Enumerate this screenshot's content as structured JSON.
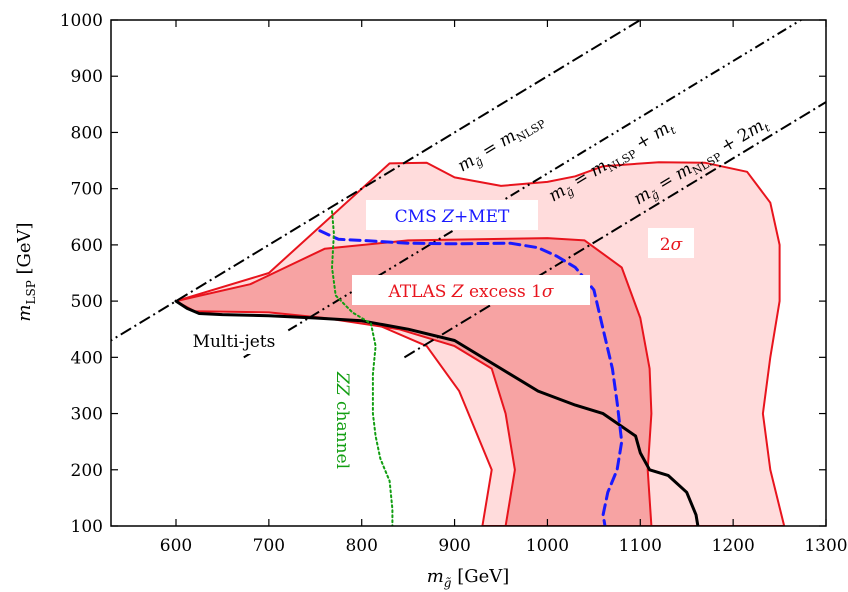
{
  "chart_data": {
    "type": "area",
    "xlabel": "m_g̃ [GeV]",
    "ylabel": "m_LSP [GeV]",
    "xlim": [
      530,
      1300
    ],
    "ylim": [
      100,
      1000
    ],
    "x_ticks": [
      "600",
      "700",
      "800",
      "900",
      "1000",
      "1100",
      "1200",
      "1300"
    ],
    "y_ticks": [
      "100",
      "200",
      "300",
      "400",
      "500",
      "600",
      "700",
      "800",
      "900",
      "1000"
    ],
    "x_tick_values": [
      600,
      700,
      800,
      900,
      1000,
      1100,
      1200,
      1300
    ],
    "y_tick_values": [
      100,
      200,
      300,
      400,
      500,
      600,
      700,
      800,
      900,
      1000
    ],
    "grid": false,
    "regions": [
      {
        "name": "2σ",
        "color": "#ffdcdc",
        "edge": "#e8141d",
        "points": [
          [
            600,
            500
          ],
          [
            700,
            550
          ],
          [
            830,
            745
          ],
          [
            870,
            746
          ],
          [
            900,
            720
          ],
          [
            950,
            705
          ],
          [
            1000,
            712
          ],
          [
            1030,
            722
          ],
          [
            1060,
            740
          ],
          [
            1120,
            747
          ],
          [
            1170,
            746
          ],
          [
            1215,
            730
          ],
          [
            1240,
            675
          ],
          [
            1250,
            600
          ],
          [
            1250,
            500
          ],
          [
            1240,
            400
          ],
          [
            1232,
            300
          ],
          [
            1240,
            200
          ],
          [
            1255,
            100
          ],
          [
            1253,
            100
          ],
          [
            1250,
            100
          ],
          [
            930,
            100
          ],
          [
            940,
            200
          ],
          [
            905,
            340
          ],
          [
            870,
            420
          ],
          [
            800,
            470
          ],
          [
            700,
            490
          ],
          [
            640,
            492
          ],
          [
            615,
            495
          ],
          [
            600,
            500
          ]
        ]
      },
      {
        "name": "1σ",
        "color": "#f7a3a3",
        "edge": "#e8141d",
        "points": [
          [
            600,
            500
          ],
          [
            680,
            530
          ],
          [
            760,
            593
          ],
          [
            850,
            608
          ],
          [
            1000,
            612
          ],
          [
            1040,
            608
          ],
          [
            1080,
            560
          ],
          [
            1100,
            470
          ],
          [
            1110,
            380
          ],
          [
            1112,
            300
          ],
          [
            1108,
            200
          ],
          [
            1112,
            100
          ],
          [
            955,
            100
          ],
          [
            965,
            200
          ],
          [
            955,
            300
          ],
          [
            940,
            380
          ],
          [
            900,
            420
          ],
          [
            840,
            450
          ],
          [
            760,
            470
          ],
          [
            700,
            480
          ],
          [
            620,
            482
          ],
          [
            600,
            500
          ]
        ]
      }
    ],
    "series": [
      {
        "name": "Multi-jets",
        "color": "#000000",
        "width": 3,
        "dash": "",
        "x": [
          600,
          612,
          625,
          650,
          700,
          750,
          800,
          850,
          900,
          950,
          990,
          1030,
          1060,
          1095,
          1100,
          1110,
          1130,
          1150,
          1160,
          1162
        ],
        "y": [
          500,
          487,
          478,
          476,
          474,
          470,
          465,
          450,
          430,
          380,
          340,
          315,
          300,
          260,
          230,
          200,
          190,
          160,
          120,
          100
        ]
      },
      {
        "name": "CMS Z+MET",
        "color": "#1a1aff",
        "width": 3,
        "dash": "10 6",
        "x": [
          755,
          775,
          800,
          850,
          900,
          960,
          990,
          1010,
          1030,
          1050,
          1060,
          1070,
          1075,
          1080,
          1075,
          1065,
          1060,
          1062
        ],
        "y": [
          625,
          610,
          608,
          603,
          602,
          603,
          595,
          580,
          560,
          520,
          450,
          380,
          320,
          250,
          200,
          160,
          120,
          100
        ]
      },
      {
        "name": "ZZ channel",
        "color": "#129e12",
        "width": 2,
        "dash": "2 3",
        "x": [
          768,
          770,
          768,
          772,
          790,
          810,
          815,
          812,
          812,
          815,
          820,
          825,
          830,
          833,
          833
        ],
        "y": [
          660,
          620,
          560,
          510,
          480,
          460,
          420,
          370,
          300,
          260,
          220,
          200,
          180,
          130,
          100
        ]
      }
    ],
    "guide_lines": [
      {
        "label": "m_g̃ = m_NLSP",
        "offset": 0
      },
      {
        "label": "m_g̃ = m_NLSP + m_t",
        "offset": 173
      },
      {
        "label": "m_g̃ = m_NLSP + 2m_t",
        "offset": 346
      }
    ],
    "annotations": {
      "cms": "CMS Z+MET",
      "atlas": "ATLAS Z excess 1σ",
      "two_sigma": "2σ",
      "multijets": "Multi-jets",
      "zz": "ZZ channel"
    }
  }
}
